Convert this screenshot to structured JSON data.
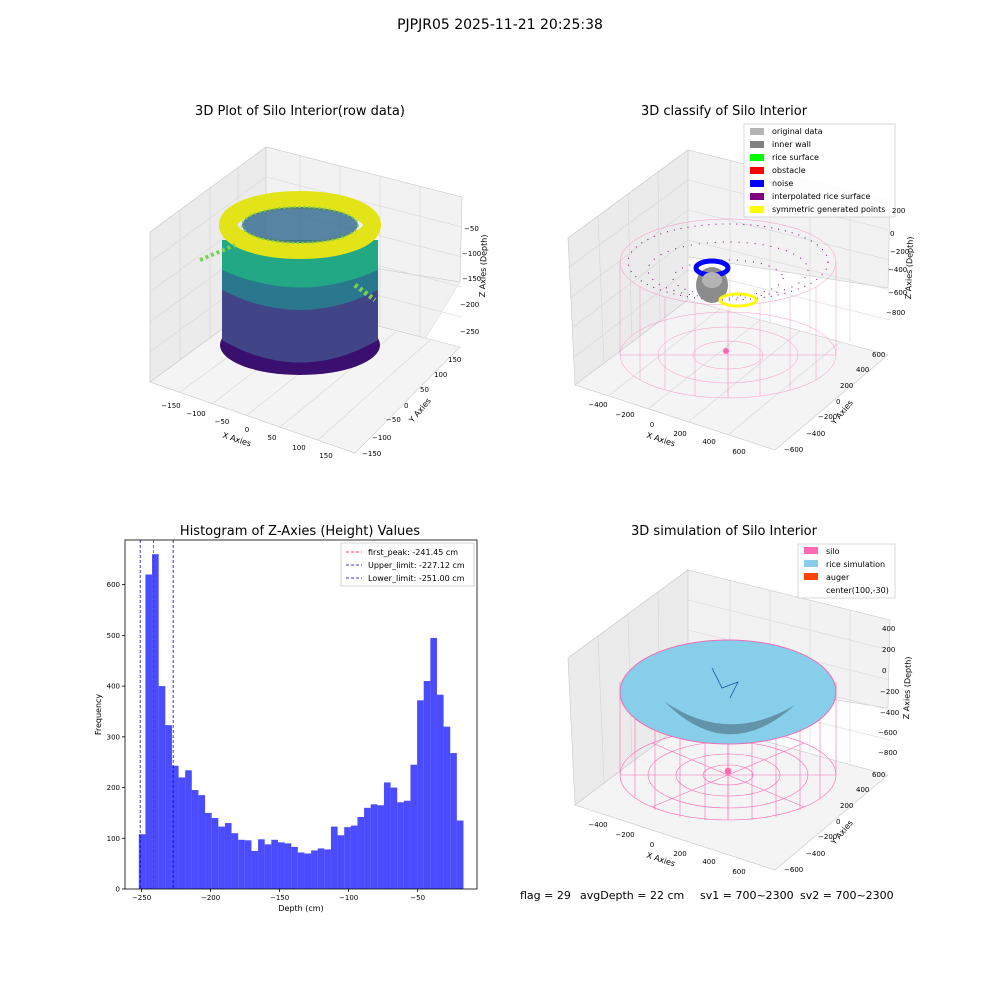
{
  "suptitle": "PJPJR05 2025-11-21 20:25:38",
  "footer": {
    "flag": "flag = 29",
    "avg_depth": "avgDepth = 22 cm",
    "sv1": "sv1 = 700~2300",
    "sv2": "sv2 = 700~2300"
  },
  "panels": {
    "raw": {
      "title": "3D Plot of Silo Interior(row data)",
      "xlabel": "X Axies",
      "ylabel": "Y Axies",
      "zlabel": "Z Axies (Depth)",
      "x_ticks": [
        "−150",
        "−100",
        "−50",
        "0",
        "50",
        "100",
        "150"
      ],
      "y_ticks": [
        "−150",
        "−100",
        "−50",
        "0",
        "50",
        "100",
        "150"
      ],
      "z_ticks": [
        "−50",
        "−100",
        "−150",
        "−200",
        "−250"
      ]
    },
    "classify": {
      "title": "3D classify of Silo Interior",
      "xlabel": "X Axies",
      "ylabel": "Y Axies",
      "zlabel": "Z Axies (Depth)",
      "x_ticks": [
        "−400",
        "−200",
        "0",
        "200",
        "400",
        "600"
      ],
      "y_ticks": [
        "−600",
        "−400",
        "−200",
        "0",
        "200",
        "400",
        "600"
      ],
      "z_ticks": [
        "200",
        "0",
        "−200",
        "−400",
        "−600",
        "−800"
      ],
      "legend": [
        {
          "label": "original data",
          "color": "#b4b4b4"
        },
        {
          "label": "inner wall",
          "color": "#808080"
        },
        {
          "label": "rice surface",
          "color": "#00ff00"
        },
        {
          "label": "obstacle",
          "color": "#ff0000"
        },
        {
          "label": "noise",
          "color": "#0000ff"
        },
        {
          "label": "interpolated rice surface",
          "color": "#800080"
        },
        {
          "label": "symmetric generated points",
          "color": "#ffff00"
        }
      ]
    },
    "simulation": {
      "title": "3D simulation of Silo Interior",
      "xlabel": "X Axies",
      "ylabel": "Y Axies",
      "zlabel": "Z Axies (Depth)",
      "x_ticks": [
        "−400",
        "−200",
        "0",
        "200",
        "400",
        "600"
      ],
      "y_ticks": [
        "−600",
        "−400",
        "−200",
        "0",
        "200",
        "400",
        "600"
      ],
      "z_ticks": [
        "400",
        "200",
        "0",
        "−200",
        "−400",
        "−600",
        "−800"
      ],
      "legend": [
        {
          "label": "silo",
          "color": "#ff69b4"
        },
        {
          "label": "rice simulation",
          "color": "#87ceeb"
        },
        {
          "label": "auger",
          "color": "#ff4500"
        },
        {
          "label": "center(100,-30)",
          "color": ""
        }
      ]
    }
  },
  "chart_data": {
    "type": "bar",
    "title": "Histogram of Z-Axies (Height) Values",
    "xlabel": "Depth (cm)",
    "ylabel": "Frequency",
    "xlim": [
      -262,
      -7
    ],
    "ylim": [
      0,
      688
    ],
    "x_ticks": [
      -250,
      -200,
      -150,
      -100,
      -50
    ],
    "x_tick_labels": [
      "−250",
      "−200",
      "−150",
      "−100",
      "−50"
    ],
    "y_ticks": [
      0,
      100,
      200,
      300,
      400,
      500,
      600
    ],
    "bar_color": "#0000ff",
    "bins_start": -252.0,
    "bin_width": 4.8,
    "values": [
      108,
      620,
      660,
      400,
      323,
      243,
      220,
      234,
      195,
      185,
      150,
      140,
      123,
      130,
      110,
      97,
      96,
      75,
      98,
      88,
      97,
      92,
      90,
      83,
      72,
      70,
      76,
      80,
      78,
      123,
      106,
      122,
      125,
      142,
      160,
      167,
      165,
      210,
      200,
      171,
      174,
      245,
      372,
      410,
      495,
      383,
      320,
      268,
      135
    ],
    "vlines": [
      {
        "x": -241.45,
        "label": "first_peak: -241.45 cm",
        "color": "#ff0000"
      },
      {
        "x": -227.12,
        "label": "Upper_limit: -227.12 cm",
        "color": "#0000cc"
      },
      {
        "x": -251.0,
        "label": "Lower_limit: -251.00 cm",
        "color": "#0000cc"
      }
    ],
    "legend_position": "top-right"
  }
}
